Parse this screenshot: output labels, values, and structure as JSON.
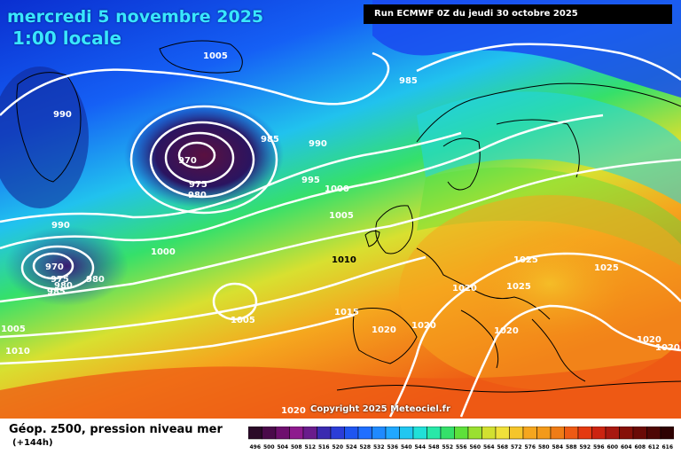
{
  "header": {
    "date_text": "mercredi 5 novembre 2025",
    "time_text": "1:00 locale",
    "run_text": "Run ECMWF 0Z du jeudi 30 octobre 2025"
  },
  "map": {
    "copyright": "Copyright 2025 Meteociel.fr",
    "isobar_labels": [
      {
        "text": "1005"
      },
      {
        "text": "985"
      },
      {
        "text": "990"
      },
      {
        "text": "985"
      },
      {
        "text": "990"
      },
      {
        "text": "970"
      },
      {
        "text": "975"
      },
      {
        "text": "980"
      },
      {
        "text": "995"
      },
      {
        "text": "1000"
      },
      {
        "text": "1005"
      },
      {
        "text": "990"
      },
      {
        "text": "970"
      },
      {
        "text": "975"
      },
      {
        "text": "980"
      },
      {
        "text": "985"
      },
      {
        "text": "980"
      },
      {
        "text": "1000"
      },
      {
        "text": "1010"
      },
      {
        "text": "1025"
      },
      {
        "text": "1025"
      },
      {
        "text": "1020"
      },
      {
        "text": "1025"
      },
      {
        "text": "1005"
      },
      {
        "text": "1015"
      },
      {
        "text": "1020"
      },
      {
        "text": "1020"
      },
      {
        "text": "1020"
      },
      {
        "text": "1020"
      },
      {
        "text": "1020"
      },
      {
        "text": "1005"
      },
      {
        "text": "1010"
      },
      {
        "text": "1020"
      }
    ],
    "colors": {
      "deep_low": "#3a1238",
      "blue": "#0a3ad8",
      "cyan": "#21d6e8",
      "green": "#35e06a",
      "yellow": "#f0e13a",
      "orange": "#f39a1a",
      "red_orange": "#ee5a14",
      "isobar": "#ffffff",
      "coast": "#000000"
    }
  },
  "legend": {
    "title": "Géop. z500, pression niveau mer",
    "subtitle": "(+144h)",
    "values": [
      "496",
      "500",
      "504",
      "508",
      "512",
      "516",
      "520",
      "524",
      "528",
      "532",
      "536",
      "540",
      "544",
      "548",
      "552",
      "556",
      "560",
      "564",
      "568",
      "572",
      "576",
      "580",
      "584",
      "588",
      "592",
      "596",
      "600",
      "604",
      "608",
      "612",
      "616"
    ],
    "colors": [
      "#2a0a28",
      "#4a0a4a",
      "#6e0f6e",
      "#8e1a8e",
      "#6a1c8c",
      "#3a2ab0",
      "#2b3dd8",
      "#1f55f0",
      "#1f6fff",
      "#1f8aff",
      "#21a8ff",
      "#21c7f0",
      "#21e0d8",
      "#28e8a8",
      "#35e06a",
      "#5ee03a",
      "#9ae030",
      "#d2e030",
      "#f0e13a",
      "#f5c52a",
      "#f5a61e",
      "#f39a1a",
      "#ef7c16",
      "#ee5a14",
      "#e43a10",
      "#cc2410",
      "#a81810",
      "#861008",
      "#6a0a06",
      "#4e0604",
      "#2e0202"
    ]
  }
}
